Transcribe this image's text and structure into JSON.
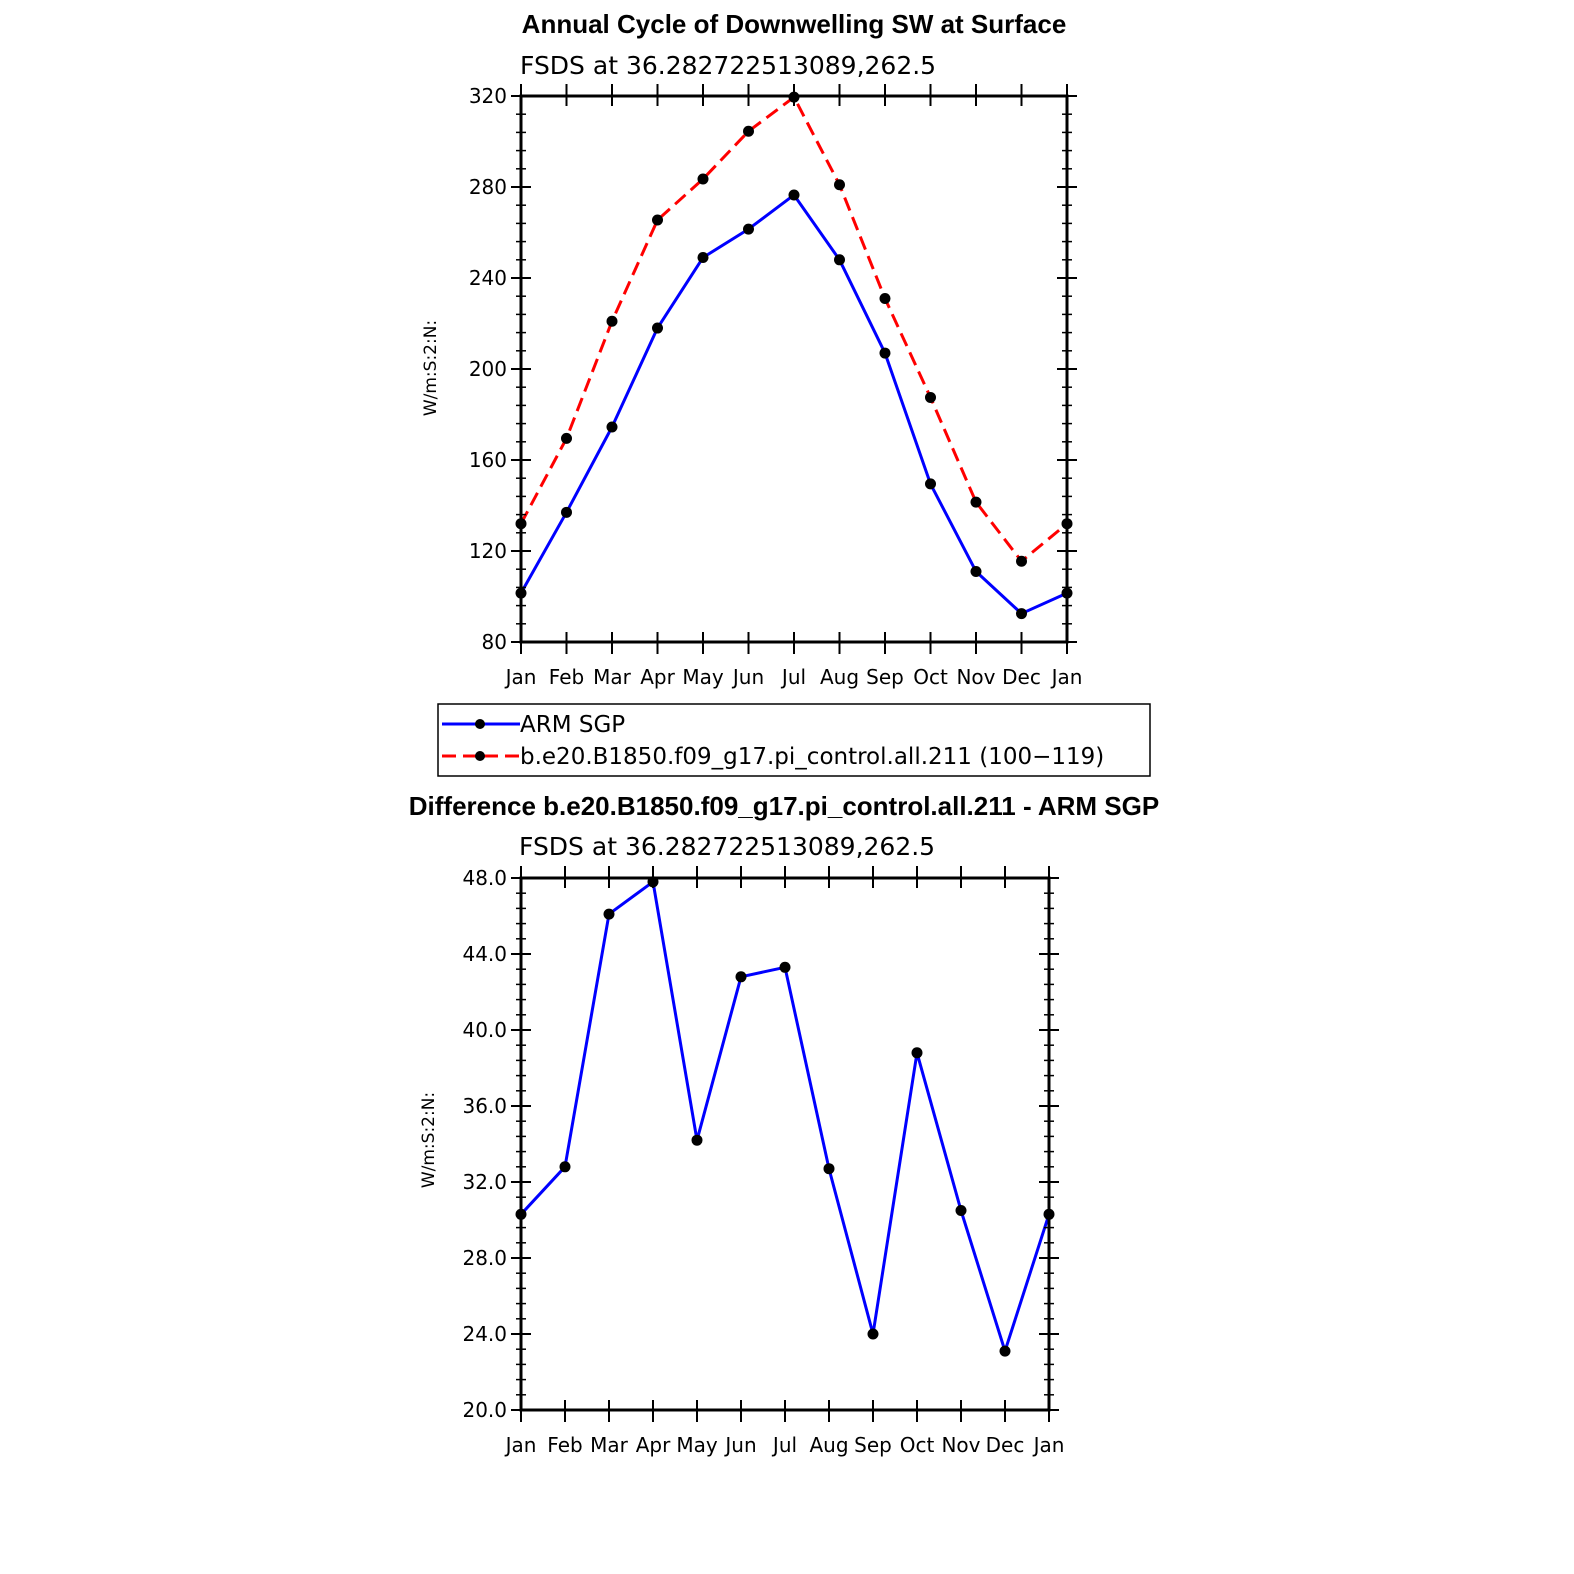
{
  "chart_data": [
    {
      "type": "line",
      "title": "Annual Cycle of Downwelling SW at Surface",
      "subtitle": "FSDS at 36.282722513089,262.5",
      "ylabel": "W/m:S:2:N:",
      "ylim": [
        80,
        320
      ],
      "yticks": [
        "80",
        "120",
        "160",
        "200",
        "240",
        "280",
        "320"
      ],
      "categories": [
        "Jan",
        "Feb",
        "Mar",
        "Apr",
        "May",
        "Jun",
        "Jul",
        "Aug",
        "Sep",
        "Oct",
        "Nov",
        "Dec",
        "Jan"
      ],
      "series": [
        {
          "name": "ARM SGP",
          "color": "#0000ff",
          "dash": "solid",
          "values": [
            101.5,
            137,
            174.5,
            218,
            249,
            261.5,
            276.5,
            248,
            207,
            149.5,
            111,
            92.5,
            101.5
          ]
        },
        {
          "name": "b.e20.B1850.f09_g17.pi_control.all.211 (100−119)",
          "color": "#ff0000",
          "dash": "dashed",
          "values": [
            132,
            169.5,
            221,
            265.5,
            283.5,
            304.5,
            319.5,
            281,
            231,
            187.5,
            141.5,
            115.5,
            132
          ]
        }
      ],
      "legend": "below"
    },
    {
      "type": "line",
      "title": "Difference b.e20.B1850.f09_g17.pi_control.all.211 - ARM SGP",
      "subtitle": "FSDS at 36.282722513089,262.5",
      "ylabel": "W/m:S:2:N:",
      "ylim": [
        20,
        48
      ],
      "yticks": [
        "20.0",
        "24.0",
        "28.0",
        "32.0",
        "36.0",
        "40.0",
        "44.0",
        "48.0"
      ],
      "categories": [
        "Jan",
        "Feb",
        "Mar",
        "Apr",
        "May",
        "Jun",
        "Jul",
        "Aug",
        "Sep",
        "Oct",
        "Nov",
        "Dec",
        "Jan"
      ],
      "series": [
        {
          "color": "#0000ff",
          "dash": "solid",
          "values": [
            30.3,
            32.8,
            46.1,
            47.8,
            34.2,
            42.8,
            43.3,
            32.7,
            24.0,
            38.8,
            30.5,
            23.1,
            30.3
          ]
        }
      ]
    }
  ]
}
